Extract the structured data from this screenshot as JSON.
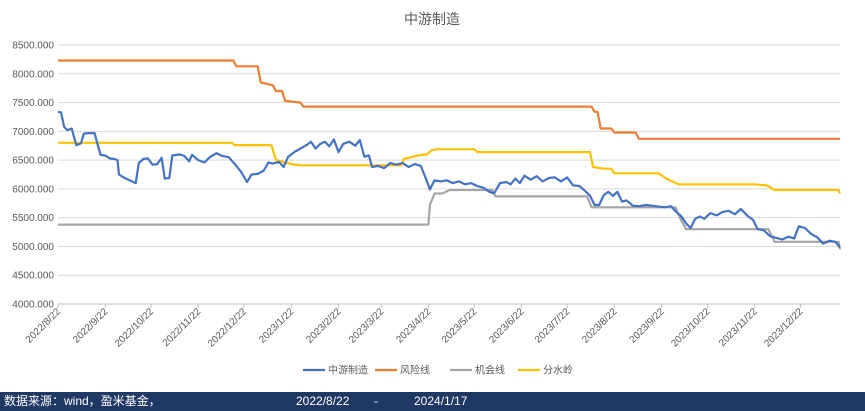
{
  "chart_data": {
    "type": "line",
    "title": "中游制造",
    "xlabel": "",
    "ylabel": "",
    "ylim": [
      4000,
      8500
    ],
    "yticks": [
      "4000.000",
      "4500.000",
      "5000.000",
      "5500.000",
      "6000.000",
      "6500.000",
      "7000.000",
      "7500.000",
      "8000.000",
      "8500.000"
    ],
    "xlim": [
      "2022-08-22",
      "2024-01-17"
    ],
    "xticks": [
      {
        "date": "2022-08-22",
        "label": "2022/8/22"
      },
      {
        "date": "2022-09-22",
        "label": "2022/9/22"
      },
      {
        "date": "2022-10-22",
        "label": "2022/10/22"
      },
      {
        "date": "2022-11-22",
        "label": "2022/11/22"
      },
      {
        "date": "2022-12-22",
        "label": "2022/12/22"
      },
      {
        "date": "2023-01-22",
        "label": "2023/1/22"
      },
      {
        "date": "2023-02-22",
        "label": "2023/2/22"
      },
      {
        "date": "2023-03-22",
        "label": "2023/3/22"
      },
      {
        "date": "2023-04-22",
        "label": "2023/4/22"
      },
      {
        "date": "2023-05-22",
        "label": "2023/5/22"
      },
      {
        "date": "2023-06-22",
        "label": "2023/6/22"
      },
      {
        "date": "2023-07-22",
        "label": "2023/7/22"
      },
      {
        "date": "2023-08-22",
        "label": "2023/8/22"
      },
      {
        "date": "2023-09-22",
        "label": "2023/9/22"
      },
      {
        "date": "2023-10-22",
        "label": "2023/10/22"
      },
      {
        "date": "2023-11-22",
        "label": "2023/11/22"
      },
      {
        "date": "2023-12-22",
        "label": "2023/12/22"
      }
    ],
    "grid": "horizontal",
    "legend_position": "bottom",
    "series": [
      {
        "name": "中游制造",
        "color": "#4472c4",
        "points": [
          [
            "2022-08-22",
            7340
          ],
          [
            "2022-08-24",
            7330
          ],
          [
            "2022-08-26",
            7080
          ],
          [
            "2022-08-28",
            7020
          ],
          [
            "2022-08-31",
            7050
          ],
          [
            "2022-09-03",
            6760
          ],
          [
            "2022-09-06",
            6790
          ],
          [
            "2022-09-08",
            6960
          ],
          [
            "2022-09-11",
            6970
          ],
          [
            "2022-09-15",
            6970
          ],
          [
            "2022-09-17",
            6770
          ],
          [
            "2022-09-19",
            6590
          ],
          [
            "2022-09-22",
            6580
          ],
          [
            "2022-09-25",
            6530
          ],
          [
            "2022-09-28",
            6520
          ],
          [
            "2022-09-30",
            6500
          ],
          [
            "2022-10-01",
            6250
          ],
          [
            "2022-10-04",
            6200
          ],
          [
            "2022-10-08",
            6150
          ],
          [
            "2022-10-12",
            6100
          ],
          [
            "2022-10-14",
            6450
          ],
          [
            "2022-10-17",
            6520
          ],
          [
            "2022-10-20",
            6530
          ],
          [
            "2022-10-23",
            6420
          ],
          [
            "2022-10-26",
            6430
          ],
          [
            "2022-10-29",
            6540
          ],
          [
            "2022-10-31",
            6180
          ],
          [
            "2022-11-03",
            6190
          ],
          [
            "2022-11-05",
            6580
          ],
          [
            "2022-11-10",
            6600
          ],
          [
            "2022-11-13",
            6570
          ],
          [
            "2022-11-16",
            6480
          ],
          [
            "2022-11-18",
            6590
          ],
          [
            "2022-11-22",
            6500
          ],
          [
            "2022-11-26",
            6460
          ],
          [
            "2022-11-30",
            6560
          ],
          [
            "2022-12-04",
            6620
          ],
          [
            "2022-12-08",
            6570
          ],
          [
            "2022-12-12",
            6550
          ],
          [
            "2022-12-16",
            6430
          ],
          [
            "2022-12-20",
            6300
          ],
          [
            "2022-12-24",
            6120
          ],
          [
            "2022-12-27",
            6250
          ],
          [
            "2022-12-31",
            6260
          ],
          [
            "2023-01-04",
            6320
          ],
          [
            "2023-01-07",
            6460
          ],
          [
            "2023-01-10",
            6440
          ],
          [
            "2023-01-14",
            6470
          ],
          [
            "2023-01-17",
            6380
          ],
          [
            "2023-01-20",
            6560
          ],
          [
            "2023-01-24",
            6640
          ],
          [
            "2023-01-28",
            6700
          ],
          [
            "2023-02-01",
            6760
          ],
          [
            "2023-02-04",
            6820
          ],
          [
            "2023-02-07",
            6700
          ],
          [
            "2023-02-10",
            6780
          ],
          [
            "2023-02-13",
            6820
          ],
          [
            "2023-02-16",
            6740
          ],
          [
            "2023-02-19",
            6860
          ],
          [
            "2023-02-22",
            6640
          ],
          [
            "2023-02-25",
            6780
          ],
          [
            "2023-03-01",
            6820
          ],
          [
            "2023-03-05",
            6750
          ],
          [
            "2023-03-08",
            6850
          ],
          [
            "2023-03-11",
            6560
          ],
          [
            "2023-03-14",
            6580
          ],
          [
            "2023-03-16",
            6380
          ],
          [
            "2023-03-20",
            6400
          ],
          [
            "2023-03-24",
            6360
          ],
          [
            "2023-03-28",
            6450
          ],
          [
            "2023-04-01",
            6420
          ],
          [
            "2023-04-05",
            6450
          ],
          [
            "2023-04-09",
            6380
          ],
          [
            "2023-04-13",
            6430
          ],
          [
            "2023-04-17",
            6400
          ],
          [
            "2023-04-20",
            6200
          ],
          [
            "2023-04-23",
            5990
          ],
          [
            "2023-04-26",
            6150
          ],
          [
            "2023-04-30",
            6130
          ],
          [
            "2023-05-04",
            6150
          ],
          [
            "2023-05-08",
            6100
          ],
          [
            "2023-05-12",
            6130
          ],
          [
            "2023-05-16",
            6080
          ],
          [
            "2023-05-20",
            6100
          ],
          [
            "2023-05-24",
            6050
          ],
          [
            "2023-05-28",
            6020
          ],
          [
            "2023-06-01",
            5950
          ],
          [
            "2023-06-04",
            5920
          ],
          [
            "2023-06-08",
            6100
          ],
          [
            "2023-06-12",
            6120
          ],
          [
            "2023-06-15",
            6080
          ],
          [
            "2023-06-18",
            6180
          ],
          [
            "2023-06-21",
            6100
          ],
          [
            "2023-06-24",
            6230
          ],
          [
            "2023-06-28",
            6160
          ],
          [
            "2023-07-02",
            6220
          ],
          [
            "2023-07-06",
            6130
          ],
          [
            "2023-07-10",
            6190
          ],
          [
            "2023-07-14",
            6200
          ],
          [
            "2023-07-18",
            6130
          ],
          [
            "2023-07-22",
            6200
          ],
          [
            "2023-07-26",
            6060
          ],
          [
            "2023-07-30",
            6050
          ],
          [
            "2023-08-03",
            5960
          ],
          [
            "2023-08-06",
            5880
          ],
          [
            "2023-08-09",
            5720
          ],
          [
            "2023-08-12",
            5720
          ],
          [
            "2023-08-15",
            5890
          ],
          [
            "2023-08-18",
            5950
          ],
          [
            "2023-08-21",
            5880
          ],
          [
            "2023-08-24",
            5950
          ],
          [
            "2023-08-27",
            5780
          ],
          [
            "2023-08-30",
            5800
          ],
          [
            "2023-09-03",
            5710
          ],
          [
            "2023-09-07",
            5700
          ],
          [
            "2023-09-12",
            5720
          ],
          [
            "2023-09-18",
            5700
          ],
          [
            "2023-09-24",
            5680
          ],
          [
            "2023-09-28",
            5700
          ],
          [
            "2023-10-02",
            5590
          ],
          [
            "2023-10-05",
            5520
          ],
          [
            "2023-10-08",
            5400
          ],
          [
            "2023-10-11",
            5320
          ],
          [
            "2023-10-14",
            5480
          ],
          [
            "2023-10-17",
            5520
          ],
          [
            "2023-10-20",
            5480
          ],
          [
            "2023-10-24",
            5580
          ],
          [
            "2023-10-28",
            5540
          ],
          [
            "2023-11-01",
            5600
          ],
          [
            "2023-11-05",
            5620
          ],
          [
            "2023-11-09",
            5560
          ],
          [
            "2023-11-13",
            5650
          ],
          [
            "2023-11-17",
            5540
          ],
          [
            "2023-11-21",
            5460
          ],
          [
            "2023-11-24",
            5300
          ],
          [
            "2023-11-28",
            5280
          ],
          [
            "2023-12-02",
            5180
          ],
          [
            "2023-12-06",
            5150
          ],
          [
            "2023-12-10",
            5120
          ],
          [
            "2023-12-14",
            5170
          ],
          [
            "2023-12-18",
            5140
          ],
          [
            "2023-12-21",
            5350
          ],
          [
            "2023-12-25",
            5320
          ],
          [
            "2023-12-29",
            5220
          ],
          [
            "2024-01-02",
            5160
          ],
          [
            "2024-01-06",
            5050
          ],
          [
            "2024-01-10",
            5100
          ],
          [
            "2024-01-14",
            5080
          ],
          [
            "2024-01-17",
            4980
          ]
        ]
      },
      {
        "name": "风险线",
        "color": "#ed7d31",
        "points": [
          [
            "2022-08-22",
            8230
          ],
          [
            "2022-12-15",
            8230
          ],
          [
            "2022-12-17",
            8130
          ],
          [
            "2022-12-31",
            8130
          ],
          [
            "2023-01-02",
            7850
          ],
          [
            "2023-01-10",
            7800
          ],
          [
            "2023-01-12",
            7700
          ],
          [
            "2023-01-16",
            7700
          ],
          [
            "2023-01-18",
            7530
          ],
          [
            "2023-01-28",
            7500
          ],
          [
            "2023-01-30",
            7430
          ],
          [
            "2023-08-07",
            7430
          ],
          [
            "2023-08-09",
            7340
          ],
          [
            "2023-08-11",
            7340
          ],
          [
            "2023-08-13",
            7050
          ],
          [
            "2023-08-20",
            7050
          ],
          [
            "2023-08-22",
            6980
          ],
          [
            "2023-09-05",
            6980
          ],
          [
            "2023-09-07",
            6870
          ],
          [
            "2024-01-17",
            6870
          ]
        ]
      },
      {
        "name": "机会线",
        "color": "#a5a5a5",
        "points": [
          [
            "2022-08-22",
            5380
          ],
          [
            "2023-04-22",
            5380
          ],
          [
            "2023-04-23",
            5720
          ],
          [
            "2023-04-26",
            5920
          ],
          [
            "2023-05-01",
            5920
          ],
          [
            "2023-05-06",
            5980
          ],
          [
            "2023-06-03",
            5980
          ],
          [
            "2023-06-05",
            5870
          ],
          [
            "2023-08-04",
            5870
          ],
          [
            "2023-08-07",
            5680
          ],
          [
            "2023-10-01",
            5680
          ],
          [
            "2023-10-04",
            5500
          ],
          [
            "2023-10-08",
            5300
          ],
          [
            "2023-12-01",
            5300
          ],
          [
            "2023-12-05",
            5080
          ],
          [
            "2024-01-16",
            5080
          ],
          [
            "2024-01-17",
            4950
          ]
        ]
      },
      {
        "name": "分水岭",
        "color": "#ffc000",
        "points": [
          [
            "2022-08-22",
            6800
          ],
          [
            "2022-12-14",
            6800
          ],
          [
            "2022-12-16",
            6760
          ],
          [
            "2023-01-09",
            6760
          ],
          [
            "2023-01-12",
            6500
          ],
          [
            "2023-01-22",
            6430
          ],
          [
            "2023-01-28",
            6410
          ],
          [
            "2023-04-04",
            6410
          ],
          [
            "2023-04-06",
            6520
          ],
          [
            "2023-04-15",
            6580
          ],
          [
            "2023-04-21",
            6600
          ],
          [
            "2023-04-24",
            6670
          ],
          [
            "2023-04-28",
            6690
          ],
          [
            "2023-05-22",
            6690
          ],
          [
            "2023-05-24",
            6640
          ],
          [
            "2023-08-06",
            6640
          ],
          [
            "2023-08-08",
            6380
          ],
          [
            "2023-08-15",
            6350
          ],
          [
            "2023-08-20",
            6350
          ],
          [
            "2023-08-22",
            6270
          ],
          [
            "2023-09-20",
            6270
          ],
          [
            "2023-09-25",
            6180
          ],
          [
            "2023-10-03",
            6080
          ],
          [
            "2023-11-22",
            6080
          ],
          [
            "2023-11-30",
            6060
          ],
          [
            "2023-12-05",
            5980
          ],
          [
            "2024-01-16",
            5980
          ],
          [
            "2024-01-17",
            5920
          ]
        ]
      }
    ]
  },
  "footer": {
    "source": "数据来源：wind，盈米基金，",
    "start_date": "2022/8/22",
    "dash": "-",
    "end_date": "2024/1/17"
  }
}
